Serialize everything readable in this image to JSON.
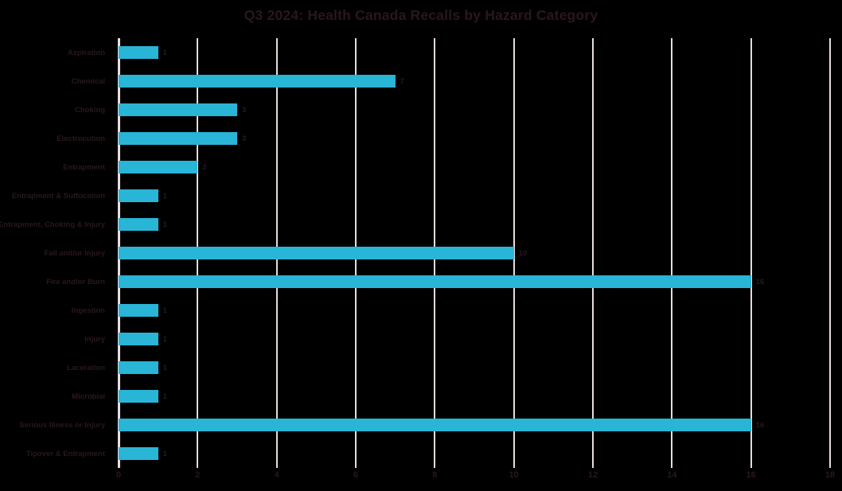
{
  "chart_data": {
    "type": "bar",
    "orientation": "horizontal",
    "title": "Q3 2024: Health Canada Recalls by Hazard Category",
    "categories": [
      "Aspiration",
      "Chemical",
      "Choking",
      "Electrocution",
      "Entrapment",
      "Entrapment & Suffocation",
      "Entrapment, Choking & Injury",
      "Fall and/or Injury",
      "Fire and/or Burn",
      "Ingestion",
      "Injury",
      "Laceration",
      "Microbial",
      "Serious Illness or Injury",
      "Tipover & Entrapment"
    ],
    "values": [
      1,
      7,
      3,
      3,
      2,
      1,
      1,
      10,
      16,
      1,
      1,
      1,
      1,
      16,
      1
    ],
    "xlabel": "",
    "ylabel": "",
    "xlim": [
      0,
      18
    ],
    "x_ticks": [
      0,
      2,
      4,
      6,
      8,
      10,
      12,
      14,
      16,
      18
    ],
    "grid": "vertical-gridlines-on",
    "legend": "none",
    "data_labels": "shown-at-bar-end",
    "colors": {
      "background": "#000000",
      "bar": "#28b5d6",
      "gridline": "#e6dbe0",
      "text": "#2a1622"
    }
  }
}
